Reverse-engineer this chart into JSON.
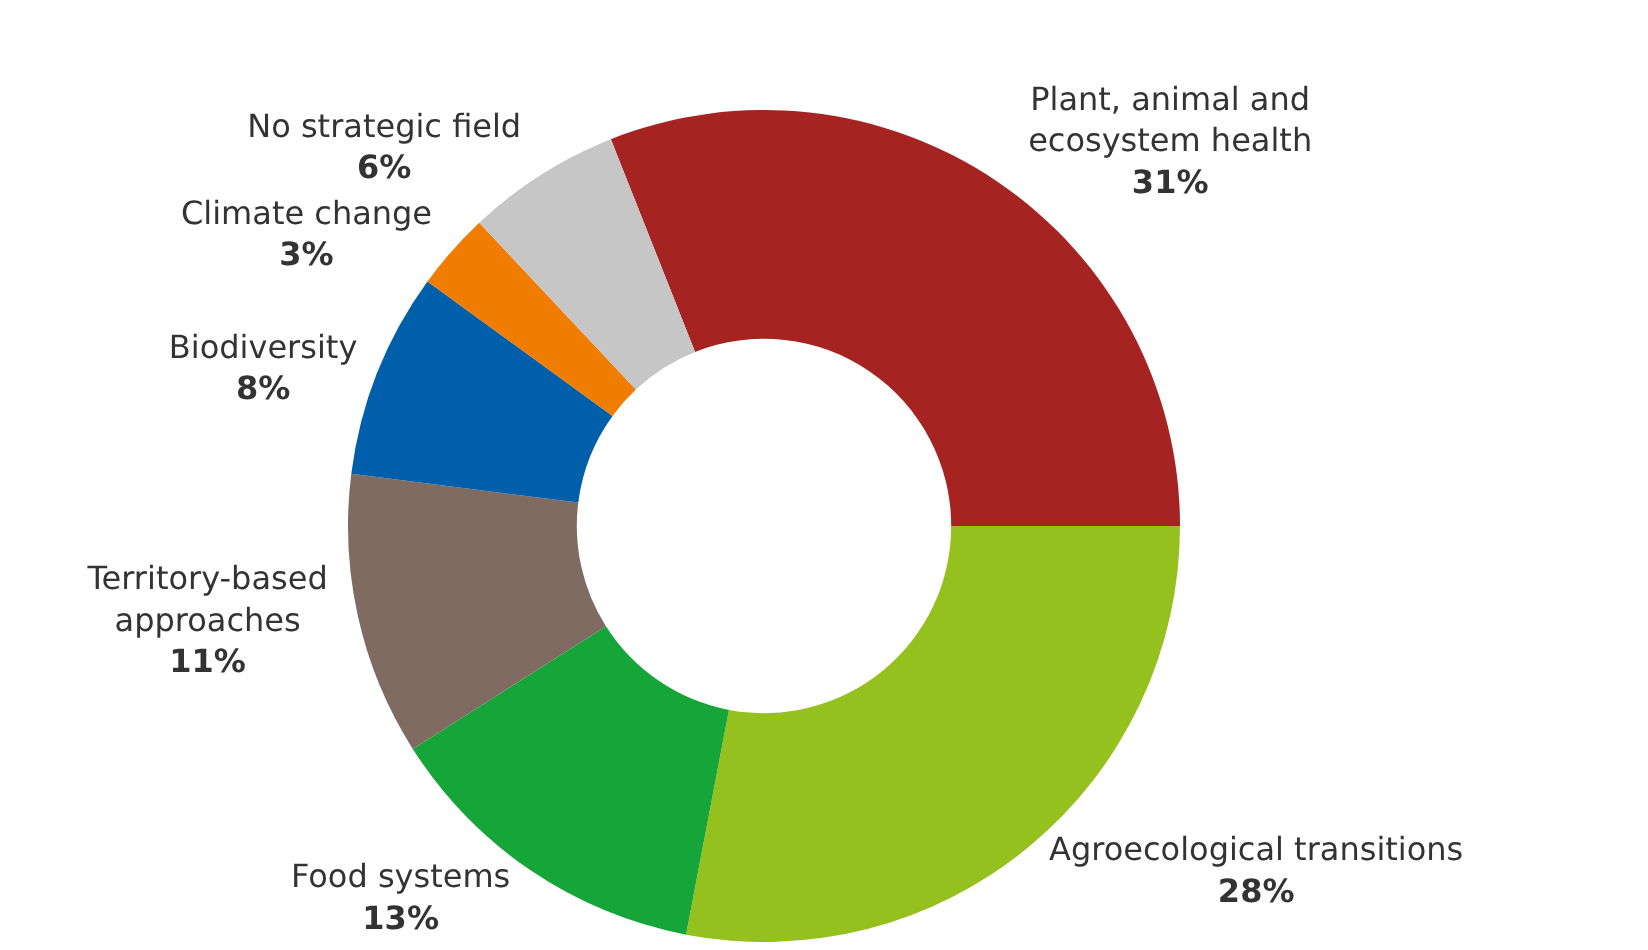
{
  "chart_data": {
    "type": "donut",
    "categories": [
      "Plant, animal and ecosystem health",
      "Agroecological transitions",
      "Food systems",
      "Territory-based approaches",
      "Biodiversity",
      "Climate change",
      "No strategic field"
    ],
    "values": [
      31,
      28,
      13,
      11,
      8,
      3,
      6
    ],
    "value_labels": [
      "31%",
      "28%",
      "13%",
      "11%",
      "8%",
      "3%",
      "6%"
    ],
    "colors": [
      "#a52422",
      "#95c11f",
      "#15a538",
      "#806b63",
      "#005faa",
      "#f07d00",
      "#c6c6c6"
    ],
    "legend": false
  }
}
